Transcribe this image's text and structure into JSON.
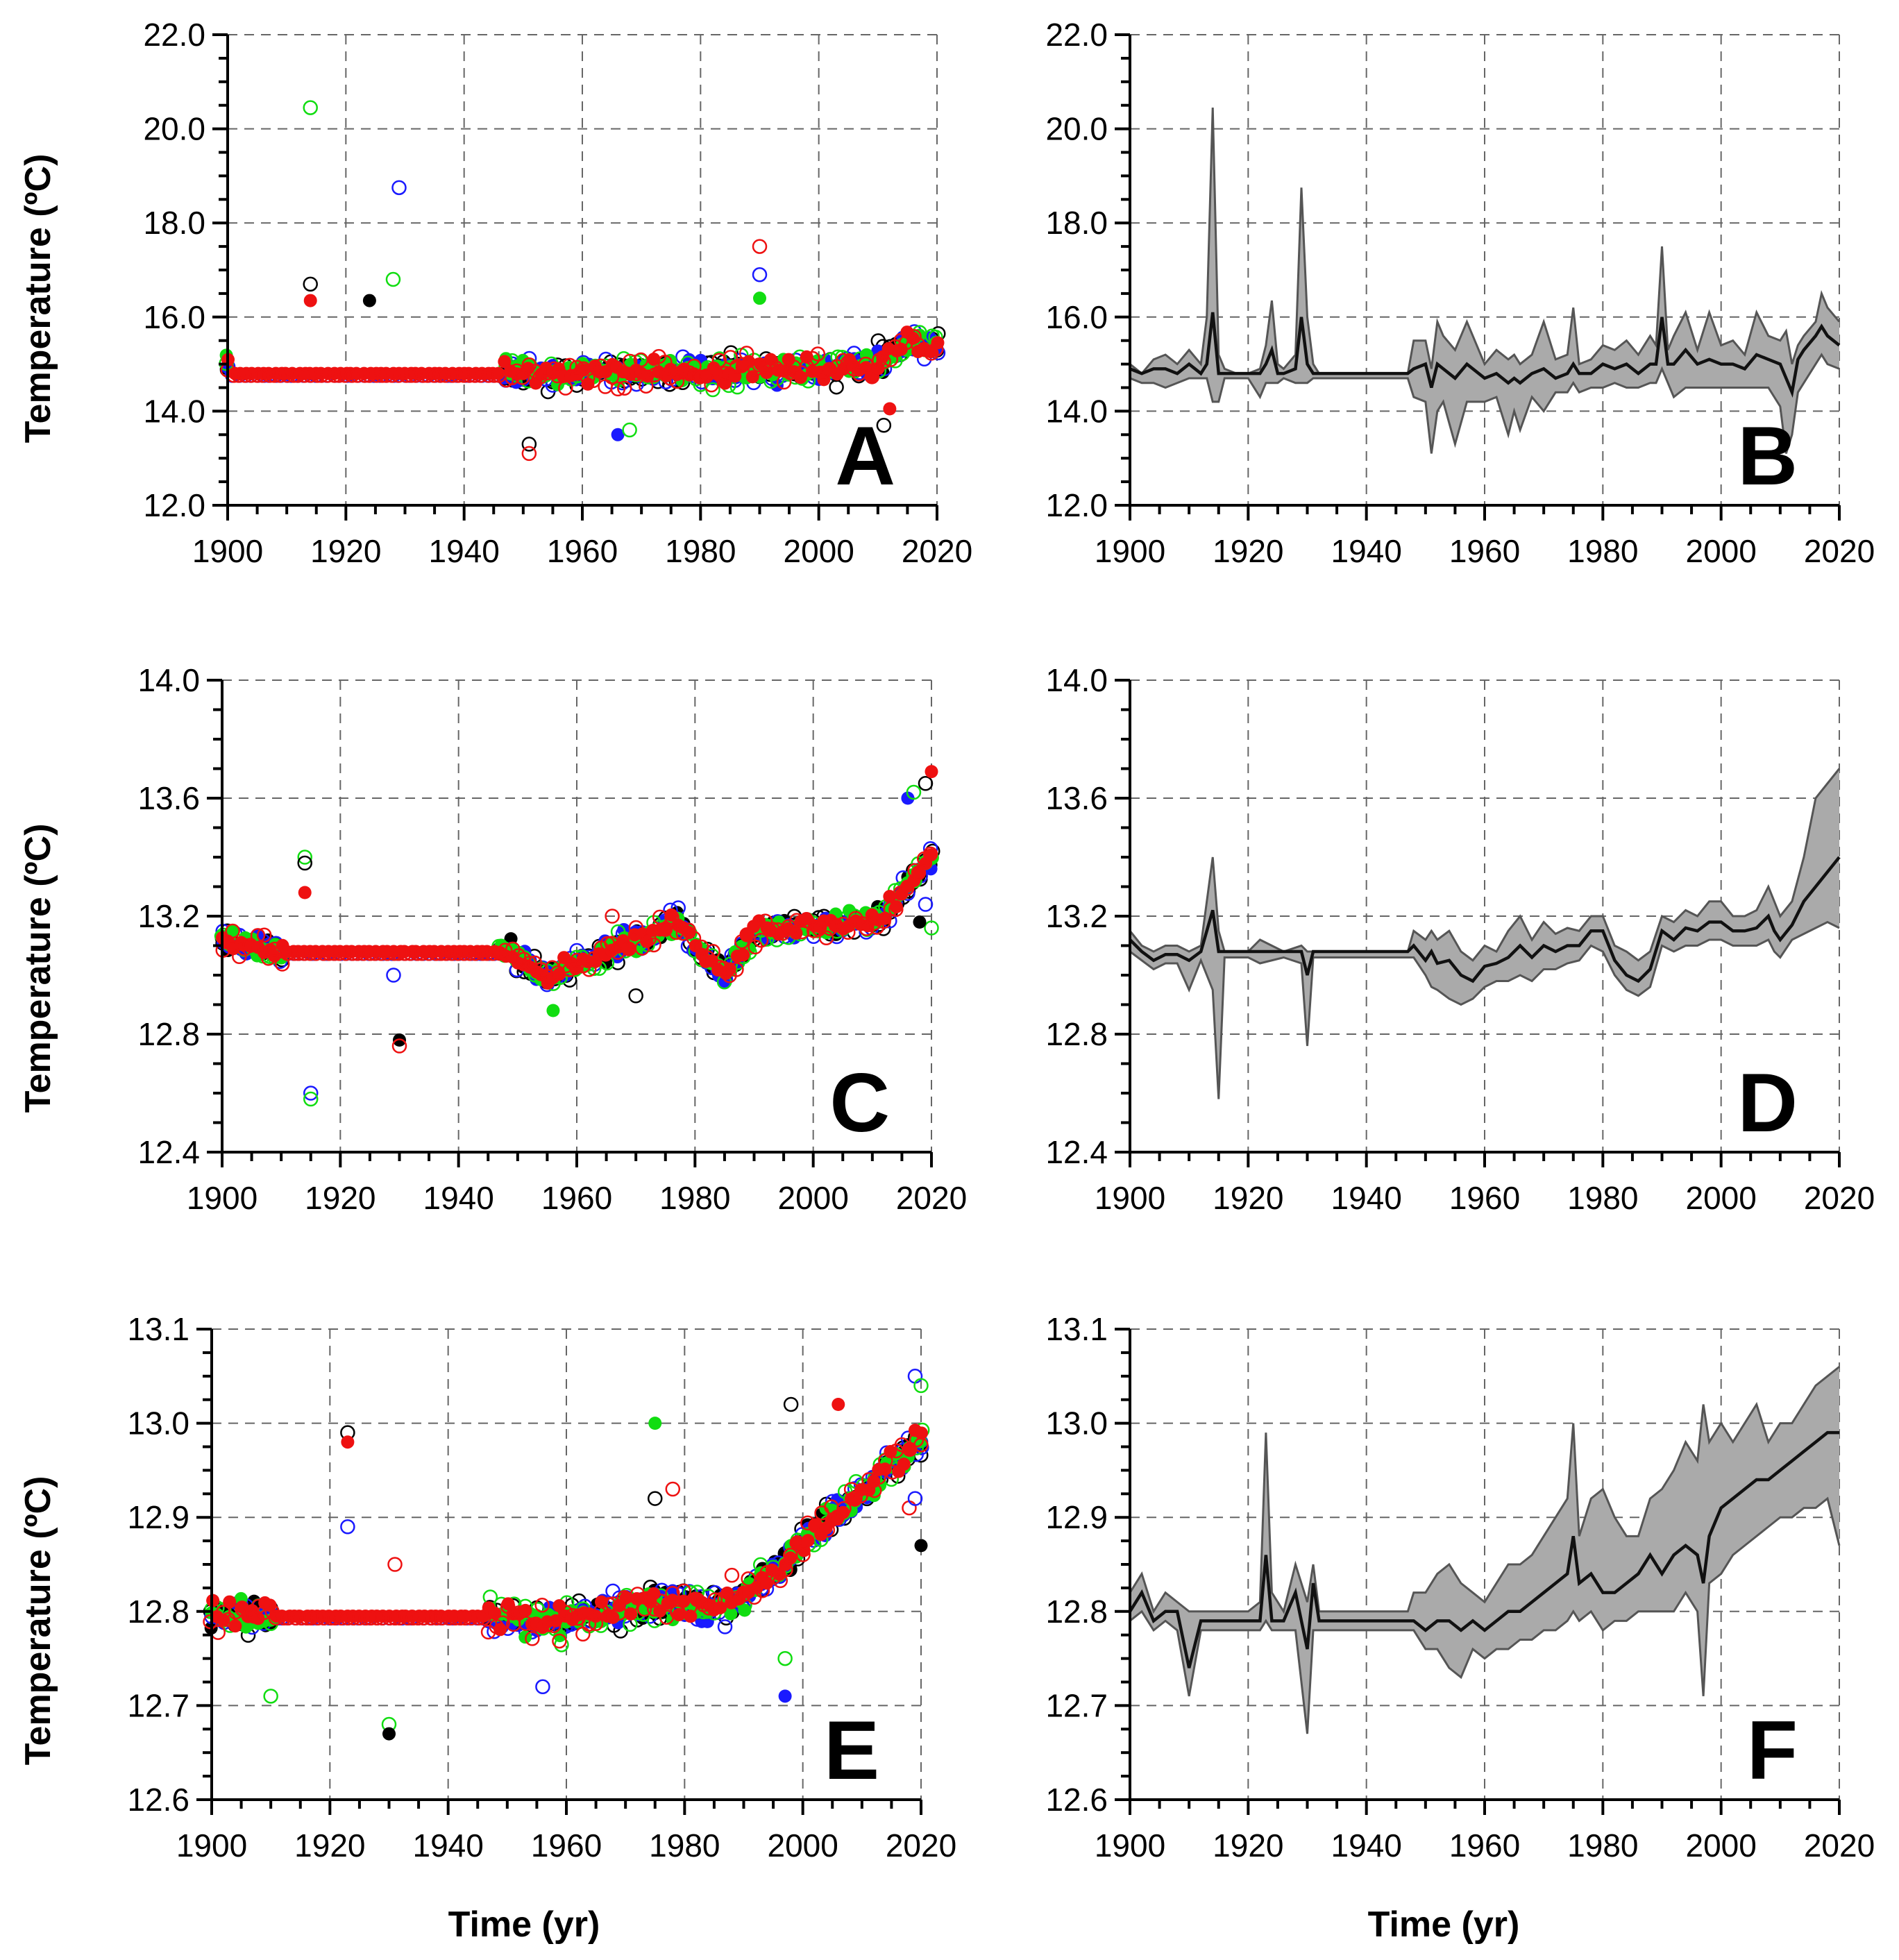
{
  "figure": {
    "xlabel": "Time (yr)",
    "ylabel": "Temperature (ºC)"
  },
  "colors": {
    "series_1": "#000000",
    "series_2": "#1a1aff",
    "series_3": "#ee1111",
    "series_4": "#11dd11",
    "band_fill": "#aaaaaa",
    "band_edge": "#555555",
    "mean_line": "#111111"
  },
  "chart_data": [
    {
      "panel": "A",
      "type": "scatter",
      "xlim": [
        1900,
        2020
      ],
      "ylim": [
        12.0,
        22.0
      ],
      "xticks": [
        "1900",
        "1920",
        "1940",
        "1960",
        "1980",
        "2000",
        "2020"
      ],
      "yticks": [
        "12.0",
        "14.0",
        "16.0",
        "18.0",
        "20.0",
        "22.0"
      ],
      "grid": true,
      "baseline": {
        "start": 1900,
        "end": 1947,
        "value": 14.8
      },
      "noise": 0.28,
      "seed": 11,
      "trend": [
        [
          1900,
          15.0
        ],
        [
          1947,
          14.8
        ],
        [
          1990,
          14.85
        ],
        [
          2008,
          14.95
        ],
        [
          2016,
          15.5
        ],
        [
          2020,
          15.4
        ]
      ],
      "outliers": [
        [
          1914,
          20.45
        ],
        [
          1914,
          16.7
        ],
        [
          1914,
          16.35
        ],
        [
          1929,
          18.75
        ],
        [
          1928,
          16.8
        ],
        [
          1924,
          16.35
        ],
        [
          1990,
          17.5
        ],
        [
          1990,
          16.9
        ],
        [
          1990,
          16.4
        ],
        [
          1951,
          13.3
        ],
        [
          1951,
          13.1
        ],
        [
          1966,
          13.5
        ],
        [
          1968,
          13.6
        ],
        [
          2011,
          13.7
        ],
        [
          2012,
          14.05
        ]
      ]
    },
    {
      "panel": "B",
      "type": "area",
      "xlim": [
        1900,
        2020
      ],
      "ylim": [
        12.0,
        22.0
      ],
      "xticks": [
        "1900",
        "1920",
        "1940",
        "1960",
        "1980",
        "2000",
        "2020"
      ],
      "yticks": [
        "12.0",
        "14.0",
        "16.0",
        "18.0",
        "20.0",
        "22.0"
      ],
      "grid": true,
      "x": [
        1900,
        1902,
        1904,
        1906,
        1908,
        1910,
        1912,
        1913,
        1914,
        1915,
        1916,
        1918,
        1920,
        1922,
        1923,
        1924,
        1925,
        1926,
        1928,
        1929,
        1930,
        1931,
        1932,
        1935,
        1940,
        1947,
        1948,
        1950,
        1951,
        1952,
        1953,
        1955,
        1957,
        1960,
        1962,
        1964,
        1965,
        1966,
        1968,
        1970,
        1972,
        1974,
        1975,
        1976,
        1978,
        1980,
        1982,
        1984,
        1986,
        1988,
        1989,
        1990,
        1991,
        1992,
        1994,
        1996,
        1998,
        2000,
        2002,
        2004,
        2006,
        2008,
        2010,
        2011,
        2012,
        2013,
        2014,
        2016,
        2017,
        2018,
        2020
      ],
      "upper": [
        15.0,
        14.8,
        15.1,
        15.2,
        15.0,
        15.3,
        15.0,
        16.0,
        20.45,
        15.2,
        14.9,
        14.8,
        14.8,
        14.9,
        15.4,
        16.35,
        15.0,
        14.9,
        15.2,
        18.75,
        16.0,
        15.0,
        14.8,
        14.8,
        14.8,
        14.8,
        15.5,
        15.5,
        14.9,
        15.9,
        15.6,
        15.3,
        15.9,
        15.0,
        15.3,
        15.1,
        15.2,
        15.0,
        15.2,
        15.9,
        15.1,
        15.2,
        16.2,
        15.0,
        15.1,
        15.4,
        15.3,
        15.5,
        15.2,
        15.6,
        15.4,
        17.5,
        15.3,
        15.6,
        16.1,
        15.3,
        16.1,
        15.4,
        15.5,
        15.2,
        16.1,
        15.6,
        15.5,
        15.7,
        15.0,
        15.4,
        15.6,
        15.9,
        16.5,
        16.2,
        15.9
      ],
      "mean": [
        14.9,
        14.8,
        14.9,
        14.9,
        14.8,
        15.0,
        14.8,
        15.0,
        16.1,
        14.8,
        14.8,
        14.8,
        14.8,
        14.8,
        15.0,
        15.3,
        14.8,
        14.8,
        14.9,
        16.0,
        15.0,
        14.8,
        14.8,
        14.8,
        14.8,
        14.8,
        14.9,
        15.0,
        14.5,
        15.0,
        14.9,
        14.7,
        15.0,
        14.7,
        14.8,
        14.6,
        14.7,
        14.6,
        14.8,
        14.9,
        14.7,
        14.8,
        15.0,
        14.8,
        14.8,
        15.0,
        14.9,
        15.0,
        14.8,
        15.0,
        15.0,
        16.0,
        15.0,
        15.0,
        15.3,
        15.0,
        15.1,
        15.0,
        15.0,
        14.9,
        15.2,
        15.1,
        15.0,
        14.7,
        14.4,
        15.1,
        15.3,
        15.6,
        15.8,
        15.6,
        15.4
      ],
      "lower": [
        14.7,
        14.6,
        14.6,
        14.5,
        14.6,
        14.7,
        14.7,
        14.7,
        14.2,
        14.2,
        14.7,
        14.7,
        14.7,
        14.3,
        14.6,
        14.6,
        14.6,
        14.7,
        14.6,
        14.6,
        14.6,
        14.7,
        14.7,
        14.7,
        14.7,
        14.7,
        14.3,
        14.2,
        13.1,
        14.0,
        14.2,
        13.3,
        14.2,
        14.2,
        14.3,
        13.5,
        14.0,
        13.6,
        14.3,
        14.0,
        14.4,
        14.4,
        14.6,
        14.4,
        14.5,
        14.5,
        14.6,
        14.5,
        14.5,
        14.6,
        14.6,
        14.9,
        14.6,
        14.3,
        14.5,
        14.5,
        14.5,
        14.5,
        14.5,
        14.5,
        14.5,
        14.5,
        14.1,
        13.1,
        13.5,
        14.4,
        14.6,
        15.0,
        15.2,
        15.0,
        14.9
      ]
    },
    {
      "panel": "C",
      "type": "scatter",
      "xlim": [
        1900,
        2020
      ],
      "ylim": [
        12.4,
        14.0
      ],
      "xticks": [
        "1900",
        "1920",
        "1940",
        "1960",
        "1980",
        "2000",
        "2020"
      ],
      "yticks": [
        "12.4",
        "12.8",
        "13.2",
        "13.6",
        "14.0"
      ],
      "grid": true,
      "baseline": {
        "start": 1910,
        "end": 1947,
        "value": 13.08
      },
      "noise": 0.04,
      "seed": 23,
      "trend": [
        [
          1900,
          13.12
        ],
        [
          1910,
          13.08
        ],
        [
          1947,
          13.1
        ],
        [
          1955,
          13.0
        ],
        [
          1962,
          13.05
        ],
        [
          1977,
          13.18
        ],
        [
          1980,
          13.1
        ],
        [
          1985,
          13.0
        ],
        [
          1990,
          13.15
        ],
        [
          2005,
          13.17
        ],
        [
          2012,
          13.2
        ],
        [
          2020,
          13.4
        ]
      ],
      "outliers": [
        [
          1914,
          13.4
        ],
        [
          1914,
          13.38
        ],
        [
          1914,
          13.28
        ],
        [
          1915,
          12.6
        ],
        [
          1915,
          12.58
        ],
        [
          1930,
          12.78
        ],
        [
          1930,
          12.76
        ],
        [
          1929,
          13.0
        ],
        [
          1956,
          12.88
        ],
        [
          1970,
          12.93
        ],
        [
          1966,
          13.2
        ],
        [
          2016,
          13.6
        ],
        [
          2017,
          13.62
        ],
        [
          2019,
          13.65
        ],
        [
          2020,
          13.69
        ],
        [
          2019,
          13.24
        ],
        [
          2020,
          13.16
        ],
        [
          2018,
          13.18
        ]
      ]
    },
    {
      "panel": "D",
      "type": "area",
      "xlim": [
        1900,
        2020
      ],
      "ylim": [
        12.4,
        14.0
      ],
      "xticks": [
        "1900",
        "1920",
        "1940",
        "1960",
        "1980",
        "2000",
        "2020"
      ],
      "yticks": [
        "12.4",
        "12.8",
        "13.2",
        "13.6",
        "14.0"
      ],
      "grid": true,
      "x": [
        1900,
        1902,
        1904,
        1906,
        1908,
        1910,
        1912,
        1914,
        1915,
        1916,
        1918,
        1920,
        1922,
        1924,
        1926,
        1929,
        1930,
        1931,
        1935,
        1940,
        1947,
        1948,
        1950,
        1951,
        1952,
        1954,
        1956,
        1958,
        1960,
        1962,
        1964,
        1966,
        1968,
        1970,
        1972,
        1974,
        1976,
        1978,
        1980,
        1982,
        1984,
        1986,
        1988,
        1990,
        1992,
        1994,
        1996,
        1998,
        2000,
        2002,
        2004,
        2006,
        2008,
        2009,
        2010,
        2012,
        2014,
        2016,
        2018,
        2020
      ],
      "upper": [
        13.15,
        13.1,
        13.08,
        13.1,
        13.1,
        13.08,
        13.1,
        13.4,
        13.15,
        13.08,
        13.08,
        13.08,
        13.12,
        13.1,
        13.08,
        13.1,
        13.08,
        13.08,
        13.08,
        13.08,
        13.08,
        13.15,
        13.12,
        13.15,
        13.12,
        13.15,
        13.08,
        13.05,
        13.1,
        13.08,
        13.15,
        13.2,
        13.12,
        13.18,
        13.14,
        13.16,
        13.15,
        13.2,
        13.2,
        13.1,
        13.08,
        13.05,
        13.08,
        13.2,
        13.18,
        13.22,
        13.2,
        13.25,
        13.25,
        13.2,
        13.2,
        13.22,
        13.3,
        13.25,
        13.2,
        13.25,
        13.4,
        13.6,
        13.65,
        13.7
      ],
      "mean": [
        13.12,
        13.08,
        13.05,
        13.07,
        13.07,
        13.05,
        13.08,
        13.22,
        13.08,
        13.08,
        13.08,
        13.08,
        13.08,
        13.08,
        13.08,
        13.08,
        13.0,
        13.08,
        13.08,
        13.08,
        13.08,
        13.1,
        13.05,
        13.08,
        13.04,
        13.05,
        13.0,
        12.98,
        13.03,
        13.04,
        13.06,
        13.1,
        13.06,
        13.1,
        13.08,
        13.1,
        13.1,
        13.15,
        13.15,
        13.05,
        13.0,
        12.98,
        13.02,
        13.15,
        13.12,
        13.16,
        13.15,
        13.18,
        13.18,
        13.15,
        13.15,
        13.16,
        13.2,
        13.15,
        13.12,
        13.17,
        13.25,
        13.3,
        13.35,
        13.4
      ],
      "lower": [
        13.08,
        13.05,
        13.02,
        13.04,
        13.04,
        12.95,
        13.05,
        12.95,
        12.58,
        13.06,
        13.06,
        13.06,
        13.04,
        13.05,
        13.06,
        13.04,
        12.76,
        13.06,
        13.06,
        13.06,
        13.06,
        13.06,
        13.0,
        12.96,
        12.95,
        12.92,
        12.9,
        12.92,
        12.96,
        12.98,
        12.98,
        13.0,
        12.98,
        13.02,
        13.02,
        13.04,
        13.05,
        13.1,
        13.08,
        13.0,
        12.95,
        12.93,
        12.96,
        13.1,
        13.08,
        13.1,
        13.1,
        13.12,
        13.12,
        13.1,
        13.1,
        13.1,
        13.12,
        13.08,
        13.06,
        13.12,
        13.14,
        13.16,
        13.18,
        13.16
      ]
    },
    {
      "panel": "E",
      "type": "scatter",
      "xlim": [
        1900,
        2020
      ],
      "ylim": [
        12.6,
        13.1
      ],
      "xticks": [
        "1900",
        "1920",
        "1940",
        "1960",
        "1980",
        "2000",
        "2020"
      ],
      "yticks": [
        "12.6",
        "12.7",
        "12.8",
        "12.9",
        "13.0",
        "13.1"
      ],
      "grid": true,
      "baseline": {
        "start": 1910,
        "end": 1947,
        "value": 12.795
      },
      "noise": 0.018,
      "seed": 37,
      "trend": [
        [
          1900,
          12.8
        ],
        [
          1910,
          12.795
        ],
        [
          1947,
          12.797
        ],
        [
          1960,
          12.79
        ],
        [
          1975,
          12.81
        ],
        [
          1985,
          12.8
        ],
        [
          1995,
          12.84
        ],
        [
          2005,
          12.9
        ],
        [
          2012,
          12.94
        ],
        [
          2020,
          12.98
        ]
      ],
      "outliers": [
        [
          1910,
          12.71
        ],
        [
          1923,
          12.99
        ],
        [
          1923,
          12.98
        ],
        [
          1923,
          12.89
        ],
        [
          1930,
          12.68
        ],
        [
          1930,
          12.67
        ],
        [
          1931,
          12.85
        ],
        [
          1956,
          12.72
        ],
        [
          1975,
          13.0
        ],
        [
          1975,
          12.92
        ],
        [
          1978,
          12.93
        ],
        [
          1997,
          12.71
        ],
        [
          1997,
          12.75
        ],
        [
          1998,
          13.02
        ],
        [
          2006,
          13.02
        ],
        [
          2019,
          13.05
        ],
        [
          2020,
          13.04
        ],
        [
          2020,
          12.87
        ],
        [
          2018,
          12.91
        ],
        [
          2019,
          12.92
        ]
      ]
    },
    {
      "panel": "F",
      "type": "area",
      "xlim": [
        1900,
        2020
      ],
      "ylim": [
        12.6,
        13.1
      ],
      "xticks": [
        "1900",
        "1920",
        "1940",
        "1960",
        "1980",
        "2000",
        "2020"
      ],
      "yticks": [
        "12.6",
        "12.7",
        "12.8",
        "12.9",
        "13.0",
        "13.1"
      ],
      "grid": true,
      "x": [
        1900,
        1902,
        1904,
        1906,
        1908,
        1910,
        1912,
        1916,
        1920,
        1922,
        1923,
        1924,
        1926,
        1928,
        1930,
        1931,
        1932,
        1935,
        1940,
        1947,
        1948,
        1950,
        1952,
        1954,
        1956,
        1958,
        1960,
        1962,
        1964,
        1966,
        1968,
        1970,
        1972,
        1974,
        1975,
        1976,
        1978,
        1980,
        1982,
        1984,
        1986,
        1988,
        1990,
        1992,
        1994,
        1996,
        1997,
        1998,
        2000,
        2002,
        2004,
        2006,
        2008,
        2010,
        2012,
        2014,
        2016,
        2018,
        2020
      ],
      "upper": [
        12.82,
        12.84,
        12.8,
        12.82,
        12.81,
        12.8,
        12.8,
        12.8,
        12.8,
        12.81,
        12.99,
        12.82,
        12.8,
        12.85,
        12.81,
        12.85,
        12.8,
        12.8,
        12.8,
        12.8,
        12.82,
        12.82,
        12.84,
        12.85,
        12.83,
        12.82,
        12.81,
        12.83,
        12.85,
        12.85,
        12.86,
        12.88,
        12.9,
        12.92,
        13.0,
        12.88,
        12.92,
        12.93,
        12.9,
        12.88,
        12.88,
        12.92,
        12.93,
        12.95,
        12.98,
        12.96,
        13.02,
        12.98,
        13.0,
        12.98,
        13.0,
        13.02,
        12.98,
        13.0,
        13.0,
        13.02,
        13.04,
        13.05,
        13.06
      ],
      "mean": [
        12.8,
        12.82,
        12.79,
        12.8,
        12.8,
        12.74,
        12.79,
        12.79,
        12.79,
        12.79,
        12.86,
        12.79,
        12.79,
        12.82,
        12.76,
        12.83,
        12.79,
        12.79,
        12.79,
        12.79,
        12.79,
        12.78,
        12.79,
        12.79,
        12.78,
        12.79,
        12.78,
        12.79,
        12.8,
        12.8,
        12.81,
        12.82,
        12.83,
        12.84,
        12.88,
        12.83,
        12.84,
        12.82,
        12.82,
        12.83,
        12.84,
        12.86,
        12.84,
        12.86,
        12.87,
        12.86,
        12.83,
        12.88,
        12.91,
        12.92,
        12.93,
        12.94,
        12.94,
        12.95,
        12.96,
        12.97,
        12.98,
        12.99,
        12.99
      ],
      "lower": [
        12.79,
        12.8,
        12.78,
        12.79,
        12.78,
        12.71,
        12.78,
        12.78,
        12.78,
        12.78,
        12.79,
        12.78,
        12.78,
        12.78,
        12.67,
        12.78,
        12.78,
        12.78,
        12.78,
        12.78,
        12.78,
        12.76,
        12.76,
        12.74,
        12.73,
        12.76,
        12.75,
        12.76,
        12.76,
        12.77,
        12.77,
        12.78,
        12.78,
        12.79,
        12.8,
        12.79,
        12.8,
        12.78,
        12.79,
        12.79,
        12.8,
        12.8,
        12.8,
        12.8,
        12.82,
        12.8,
        12.71,
        12.83,
        12.84,
        12.86,
        12.87,
        12.88,
        12.89,
        12.9,
        12.9,
        12.91,
        12.91,
        12.92,
        12.87
      ]
    }
  ],
  "panel_letters": {
    "A": "A",
    "B": "B",
    "C": "C",
    "D": "D",
    "E": "E",
    "F": "F"
  }
}
